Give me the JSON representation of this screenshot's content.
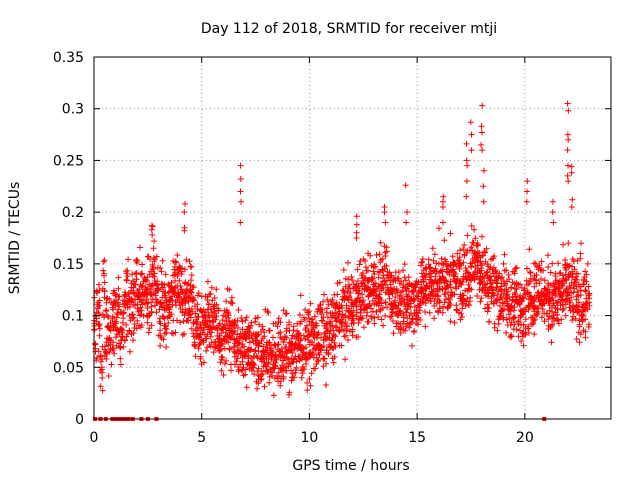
{
  "chart_data": {
    "type": "scatter",
    "title": "Day 112 of 2018, SRMTID for receiver mtji",
    "xlabel": "GPS time / hours",
    "ylabel": "SRMTID / TECUs",
    "xlim": [
      0,
      24
    ],
    "ylim": [
      0,
      0.35
    ],
    "xticks": [
      0,
      5,
      10,
      15,
      20
    ],
    "xtick_labels": [
      "0",
      "5",
      "10",
      "15",
      "20"
    ],
    "yticks": [
      0,
      0.05,
      0.1,
      0.15,
      0.2,
      0.25,
      0.3,
      0.35
    ],
    "ytick_labels": [
      "0",
      "0.05",
      "0.1",
      "0.15",
      "0.2",
      "0.25",
      "0.3",
      "0.35"
    ],
    "grid": true,
    "marker": "plus",
    "color": "#ff0000",
    "series": [
      {
        "name": "SRMTID",
        "x": [
          0.0,
          0.1,
          0.2,
          0.3,
          0.4,
          0.5,
          0.6,
          0.7,
          0.8,
          0.9,
          1.0,
          1.1,
          1.2,
          1.3,
          1.4,
          1.5,
          1.6,
          1.7,
          1.8,
          1.9,
          2.0,
          2.1,
          2.2,
          2.3,
          2.4,
          2.5,
          2.6,
          2.7,
          2.8,
          2.9,
          3.0,
          3.1,
          3.2,
          3.3,
          3.4,
          3.5,
          3.6,
          3.7,
          3.8,
          3.9,
          4.0,
          4.1,
          4.2,
          4.3,
          4.4,
          4.5,
          4.6,
          4.7,
          4.8,
          4.9,
          5.0,
          5.1,
          5.2,
          5.3,
          5.4,
          5.5,
          5.6,
          5.7,
          5.8,
          5.9,
          6.0,
          6.1,
          6.2,
          6.3,
          6.4,
          6.5,
          6.6,
          6.7,
          6.8,
          6.9,
          7.0,
          7.1,
          7.2,
          7.3,
          7.4,
          7.5,
          7.6,
          7.7,
          7.8,
          7.9,
          8.0,
          8.1,
          8.2,
          8.3,
          8.4,
          8.5,
          8.6,
          8.7,
          8.8,
          8.9,
          9.0,
          9.1,
          9.2,
          9.3,
          9.4,
          9.5,
          9.6,
          9.7,
          9.8,
          9.9,
          10.0,
          10.1,
          10.2,
          10.3,
          10.4,
          10.5,
          10.6,
          10.7,
          10.8,
          10.9,
          11.0,
          11.1,
          11.2,
          11.3,
          11.4,
          11.5,
          11.6,
          11.7,
          11.8,
          11.9,
          12.0,
          12.1,
          12.2,
          12.3,
          12.4,
          12.5,
          12.6,
          12.7,
          12.8,
          12.9,
          13.0,
          13.1,
          13.2,
          13.3,
          13.4,
          13.5,
          13.6,
          13.7,
          13.8,
          13.9,
          14.0,
          14.1,
          14.2,
          14.3,
          14.4,
          14.5,
          14.6,
          14.7,
          14.8,
          14.9,
          15.0,
          15.1,
          15.2,
          15.3,
          15.4,
          15.5,
          15.6,
          15.7,
          15.8,
          15.9,
          16.0,
          16.1,
          16.2,
          16.3,
          16.4,
          16.5,
          16.6,
          16.7,
          16.8,
          16.9,
          17.0,
          17.1,
          17.2,
          17.3,
          17.4,
          17.5,
          17.6,
          17.7,
          17.8,
          17.9,
          18.0,
          18.1,
          18.2,
          18.3,
          18.4,
          18.5,
          18.6,
          18.7,
          18.8,
          18.9,
          19.0,
          19.1,
          19.2,
          19.3,
          19.4,
          19.5,
          19.6,
          19.7,
          19.8,
          19.9,
          20.0,
          20.1,
          20.2,
          20.3,
          20.4,
          20.5,
          20.6,
          20.7,
          20.8,
          20.9,
          21.0,
          21.1,
          21.2,
          21.3,
          21.4,
          21.5,
          21.6,
          21.7,
          21.8,
          21.9,
          22.0,
          22.1,
          22.2,
          22.3,
          22.4,
          22.5,
          22.6,
          22.7,
          22.8,
          22.9
        ],
        "y": [
          0.088,
          0.105,
          0.095,
          0.062,
          0.125,
          0.085,
          0.078,
          0.092,
          0.099,
          0.102,
          0.096,
          0.102,
          0.088,
          0.094,
          0.11,
          0.116,
          0.103,
          0.108,
          0.112,
          0.125,
          0.118,
          0.121,
          0.125,
          0.12,
          0.118,
          0.11,
          0.123,
          0.133,
          0.128,
          0.121,
          0.103,
          0.12,
          0.109,
          0.112,
          0.11,
          0.116,
          0.119,
          0.124,
          0.128,
          0.134,
          0.129,
          0.115,
          0.121,
          0.118,
          0.116,
          0.109,
          0.098,
          0.092,
          0.087,
          0.088,
          0.093,
          0.094,
          0.097,
          0.102,
          0.093,
          0.089,
          0.089,
          0.086,
          0.081,
          0.082,
          0.078,
          0.085,
          0.092,
          0.087,
          0.082,
          0.08,
          0.075,
          0.073,
          0.07,
          0.07,
          0.072,
          0.074,
          0.074,
          0.072,
          0.07,
          0.068,
          0.066,
          0.063,
          0.062,
          0.062,
          0.064,
          0.066,
          0.062,
          0.061,
          0.064,
          0.064,
          0.062,
          0.061,
          0.061,
          0.062,
          0.065,
          0.066,
          0.067,
          0.068,
          0.071,
          0.072,
          0.075,
          0.073,
          0.072,
          0.071,
          0.074,
          0.074,
          0.074,
          0.075,
          0.079,
          0.081,
          0.082,
          0.081,
          0.082,
          0.087,
          0.087,
          0.092,
          0.095,
          0.097,
          0.1,
          0.103,
          0.105,
          0.106,
          0.109,
          0.109,
          0.11,
          0.112,
          0.114,
          0.117,
          0.118,
          0.122,
          0.121,
          0.124,
          0.123,
          0.126,
          0.126,
          0.125,
          0.126,
          0.128,
          0.126,
          0.125,
          0.125,
          0.124,
          0.12,
          0.119,
          0.117,
          0.116,
          0.114,
          0.114,
          0.113,
          0.112,
          0.112,
          0.113,
          0.114,
          0.117,
          0.12,
          0.122,
          0.124,
          0.126,
          0.127,
          0.129,
          0.13,
          0.131,
          0.132,
          0.133,
          0.135,
          0.134,
          0.133,
          0.132,
          0.131,
          0.13,
          0.131,
          0.13,
          0.131,
          0.132,
          0.133,
          0.135,
          0.137,
          0.14,
          0.145,
          0.151,
          0.156,
          0.153,
          0.149,
          0.144,
          0.141,
          0.138,
          0.135,
          0.133,
          0.131,
          0.128,
          0.126,
          0.123,
          0.12,
          0.119,
          0.117,
          0.115,
          0.113,
          0.112,
          0.111,
          0.11,
          0.11,
          0.11,
          0.111,
          0.112,
          0.113,
          0.116,
          0.118,
          0.121,
          0.123,
          0.125,
          0.124,
          0.123,
          0.122,
          0.12,
          0.119,
          0.117,
          0.116,
          0.114,
          0.115,
          0.117,
          0.12,
          0.123,
          0.125,
          0.126,
          0.126,
          0.125,
          0.121,
          0.118,
          0.115,
          0.112,
          0.11,
          0.109,
          0.11,
          0.111
        ]
      }
    ],
    "spread": 0.032,
    "spikes": [
      {
        "x": 2.7,
        "values": [
          0.178,
          0.183,
          0.187,
          0.186
        ]
      },
      {
        "x": 4.2,
        "values": [
          0.208,
          0.2,
          0.185,
          0.182
        ]
      },
      {
        "x": 6.8,
        "values": [
          0.245,
          0.232,
          0.22,
          0.21,
          0.19
        ]
      },
      {
        "x": 12.2,
        "values": [
          0.196,
          0.188,
          0.18,
          0.175
        ]
      },
      {
        "x": 13.5,
        "values": [
          0.205,
          0.2,
          0.19
        ]
      },
      {
        "x": 14.5,
        "values": [
          0.226,
          0.2,
          0.19
        ]
      },
      {
        "x": 16.2,
        "values": [
          0.215,
          0.21,
          0.205,
          0.19
        ]
      },
      {
        "x": 17.3,
        "values": [
          0.266,
          0.25,
          0.245,
          0.23,
          0.215
        ]
      },
      {
        "x": 17.5,
        "values": [
          0.287,
          0.275,
          0.26
        ]
      },
      {
        "x": 18.0,
        "values": [
          0.303,
          0.283,
          0.277,
          0.265,
          0.26
        ]
      },
      {
        "x": 18.1,
        "values": [
          0.24,
          0.225,
          0.21
        ]
      },
      {
        "x": 20.1,
        "values": [
          0.23,
          0.22,
          0.21
        ]
      },
      {
        "x": 21.3,
        "values": [
          0.21,
          0.2,
          0.19
        ]
      },
      {
        "x": 22.0,
        "values": [
          0.305,
          0.298,
          0.275,
          0.27,
          0.26,
          0.245,
          0.235,
          0.23
        ]
      },
      {
        "x": 22.2,
        "values": [
          0.244,
          0.238,
          0.212,
          0.205
        ]
      },
      {
        "x": 22.6,
        "values": [
          0.17,
          0.16,
          0.155
        ]
      }
    ],
    "zero_markers_x": [
      0.05,
      0.3,
      0.55,
      0.85,
      0.95,
      1.05,
      1.2,
      1.3,
      1.45,
      1.6,
      1.8,
      2.2,
      2.5,
      2.9,
      20.9
    ]
  }
}
